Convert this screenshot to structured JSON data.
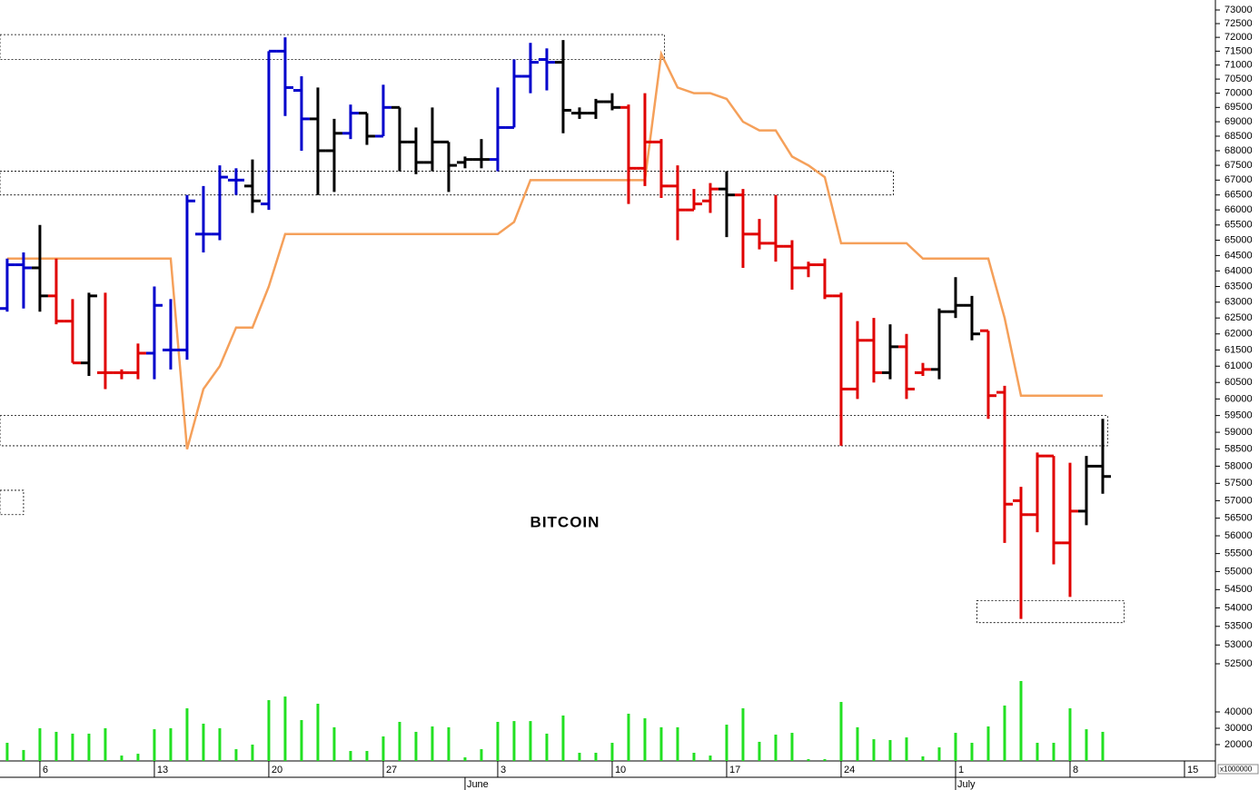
{
  "chart_data": {
    "type": "ohlc",
    "title": "BITCOIN",
    "x": [
      0,
      1,
      2,
      3,
      4,
      5,
      6,
      7,
      8,
      9,
      10,
      11,
      12,
      13,
      14,
      15,
      16,
      17,
      18,
      19,
      20,
      21,
      22,
      23,
      24,
      25,
      26,
      27,
      28,
      29,
      30,
      31,
      32,
      33,
      34,
      35,
      36,
      37,
      38,
      39,
      40,
      41,
      42,
      43,
      44,
      45,
      46,
      47,
      48,
      49,
      50,
      51,
      52,
      53,
      54,
      55,
      56,
      57,
      58,
      59,
      60,
      61,
      62,
      63,
      64,
      65,
      66,
      67
    ],
    "open": [
      62800,
      64200,
      64100,
      63200,
      62400,
      61100,
      60800,
      60800,
      60800,
      61400,
      61500,
      61500,
      65200,
      65200,
      67000,
      66800,
      66200,
      71500,
      70100,
      69100,
      68000,
      68600,
      69300,
      68500,
      69500,
      68300,
      67600,
      68300,
      67600,
      67700,
      67700,
      68800,
      70600,
      71200,
      71100,
      69300,
      69300,
      69700,
      69500,
      67400,
      68300,
      66800,
      66000,
      66300,
      66700,
      66500,
      65200,
      64900,
      64800,
      64100,
      64200,
      63200,
      60300,
      61800,
      60800,
      61600,
      60800,
      60900,
      62700,
      62900,
      62100,
      60200,
      57000,
      56600,
      58300,
      55800,
      56700,
      58000
    ],
    "high": [
      64400,
      64600,
      65500,
      64400,
      63100,
      63300,
      63300,
      60900,
      61700,
      63500,
      63100,
      66500,
      66800,
      67500,
      67400,
      67700,
      71500,
      72000,
      70600,
      70200,
      69100,
      69600,
      69300,
      70300,
      69500,
      68800,
      69500,
      68300,
      67800,
      68400,
      70200,
      71200,
      71800,
      71600,
      71900,
      69500,
      69800,
      70000,
      69600,
      70000,
      68400,
      67500,
      66700,
      66900,
      67300,
      66700,
      65700,
      66500,
      65000,
      64300,
      64400,
      63300,
      62400,
      62500,
      62300,
      62000,
      61100,
      62800,
      63800,
      63200,
      62100,
      60400,
      57400,
      58400,
      58300,
      58100,
      58300,
      59400
    ],
    "low": [
      62700,
      62800,
      62700,
      62300,
      61100,
      60700,
      60300,
      60600,
      60600,
      60600,
      60900,
      61200,
      64600,
      65000,
      66500,
      65900,
      66000,
      69200,
      68000,
      66500,
      66600,
      68400,
      68200,
      68500,
      67300,
      67200,
      67300,
      66600,
      67400,
      67400,
      67300,
      68800,
      70000,
      70100,
      68600,
      69100,
      69100,
      69400,
      66200,
      66800,
      66400,
      65000,
      66000,
      65900,
      65100,
      64100,
      64700,
      64300,
      63400,
      63800,
      63100,
      58600,
      60000,
      60500,
      60600,
      60000,
      60700,
      60600,
      62500,
      61800,
      59400,
      55800,
      53700,
      56100,
      55200,
      54300,
      56300,
      57200
    ],
    "close": [
      64200,
      64100,
      63200,
      62400,
      61100,
      63200,
      60800,
      60800,
      61400,
      62900,
      61500,
      66300,
      65200,
      67100,
      67000,
      66300,
      71500,
      70200,
      69100,
      68000,
      68600,
      69300,
      68500,
      69500,
      68300,
      67600,
      68300,
      67500,
      67700,
      67700,
      68800,
      70600,
      71100,
      71100,
      69400,
      69300,
      69700,
      69500,
      67400,
      68300,
      66800,
      66000,
      66200,
      66700,
      66500,
      65200,
      64900,
      64800,
      64100,
      64200,
      63200,
      60300,
      61800,
      60800,
      61600,
      60300,
      60900,
      62700,
      62900,
      62000,
      60100,
      56900,
      56600,
      58300,
      55800,
      56700,
      58000,
      57700
    ],
    "bar_colors": [
      "#0000cc",
      "#0000cc",
      "#000000",
      "#e00000",
      "#e00000",
      "#000000",
      "#e00000",
      "#e00000",
      "#e00000",
      "#0000cc",
      "#0000cc",
      "#0000cc",
      "#0000cc",
      "#0000cc",
      "#0000cc",
      "#000000",
      "#0000cc",
      "#0000cc",
      "#0000cc",
      "#000000",
      "#000000",
      "#0000cc",
      "#000000",
      "#0000cc",
      "#000000",
      "#000000",
      "#000000",
      "#000000",
      "#000000",
      "#000000",
      "#0000cc",
      "#0000cc",
      "#0000cc",
      "#0000cc",
      "#000000",
      "#000000",
      "#000000",
      "#000000",
      "#e00000",
      "#e00000",
      "#e00000",
      "#e00000",
      "#e00000",
      "#e00000",
      "#000000",
      "#e00000",
      "#e00000",
      "#e00000",
      "#e00000",
      "#e00000",
      "#e00000",
      "#e00000",
      "#e00000",
      "#e00000",
      "#000000",
      "#e00000",
      "#e00000",
      "#000000",
      "#000000",
      "#000000",
      "#e00000",
      "#e00000",
      "#e00000",
      "#e00000",
      "#e00000",
      "#e00000",
      "#000000",
      "#000000"
    ],
    "stop_line": {
      "color": "#f5a05a",
      "values": [
        64400,
        64400,
        64400,
        64400,
        64400,
        64400,
        64400,
        64400,
        64400,
        64400,
        64400,
        58500,
        60300,
        61000,
        62200,
        62200,
        63500,
        65200,
        65200,
        65200,
        65200,
        65200,
        65200,
        65200,
        65200,
        65200,
        65200,
        65200,
        65200,
        65200,
        65200,
        65600,
        67000,
        67000,
        67000,
        67000,
        67000,
        67000,
        67000,
        67000,
        71400,
        70200,
        70000,
        70000,
        69800,
        69000,
        68700,
        68700,
        67800,
        67500,
        67100,
        64900,
        64900,
        64900,
        64900,
        64900,
        64400,
        64400,
        64400,
        64400,
        64400,
        62500,
        60100,
        60100,
        60100,
        60100,
        60100,
        60100
      ]
    },
    "volume": {
      "color": "#22e022",
      "axis": "y2",
      "values": [
        21100,
        16700,
        30000,
        27800,
        26700,
        26700,
        30000,
        13300,
        14400,
        29400,
        30000,
        42200,
        32800,
        30000,
        17200,
        20000,
        47200,
        49400,
        35000,
        45000,
        30600,
        16100,
        16100,
        25000,
        33900,
        27800,
        31100,
        30600,
        12200,
        17200,
        33900,
        34400,
        34400,
        26700,
        37800,
        15000,
        15000,
        21100,
        38900,
        36100,
        30600,
        30600,
        15000,
        13300,
        32200,
        42200,
        21700,
        26100,
        27200,
        11100,
        11100,
        46100,
        30600,
        23300,
        22800,
        24400,
        12800,
        18300,
        27200,
        21100,
        31100,
        43900,
        58900,
        21100,
        21100,
        42200,
        29400,
        27800
      ]
    },
    "zones": [
      {
        "x": [
          -0.44,
          40.2
        ],
        "y": [
          71200,
          72100
        ]
      },
      {
        "x": [
          -0.44,
          54.2
        ],
        "y": [
          66500,
          67300
        ]
      },
      {
        "x": [
          -0.44,
          67.3
        ],
        "y": [
          58600,
          59500
        ]
      },
      {
        "x": [
          -0.44,
          1
        ],
        "y": [
          56600,
          57300
        ]
      },
      {
        "x": [
          59.3,
          68.3
        ],
        "y": [
          53600,
          54200
        ]
      }
    ],
    "log_y": true,
    "ylim": [
      52500,
      73000
    ],
    "yticks": [
      52500,
      53000,
      53500,
      54000,
      54500,
      55000,
      55500,
      56000,
      56500,
      57000,
      57500,
      58000,
      58500,
      59000,
      59500,
      60000,
      60500,
      61000,
      61500,
      62000,
      62500,
      63000,
      63500,
      64000,
      64500,
      65000,
      65500,
      66000,
      66500,
      67000,
      67500,
      68000,
      68500,
      69000,
      69500,
      70000,
      70500,
      71000,
      71500,
      72000,
      72500,
      73000
    ],
    "y2lim": [
      10000,
      60000
    ],
    "y2ticks": [
      20000,
      30000,
      40000
    ],
    "y2_label": "x1000000",
    "xlim": [
      -0.44,
      73.89
    ],
    "xticks": [
      {
        "value": 2,
        "label": "6"
      },
      {
        "value": 9,
        "label": "13"
      },
      {
        "value": 16,
        "label": "20"
      },
      {
        "value": 23,
        "label": "27"
      },
      {
        "value": 30,
        "label": "3"
      },
      {
        "value": 37,
        "label": "10"
      },
      {
        "value": 44,
        "label": "17"
      },
      {
        "value": 51,
        "label": "24"
      },
      {
        "value": 58,
        "label": "1"
      },
      {
        "value": 65,
        "label": "8"
      },
      {
        "value": 72,
        "label": "15"
      }
    ],
    "month_ticks": [
      {
        "value": 28,
        "label": "June"
      },
      {
        "value": 58,
        "label": "July"
      }
    ]
  }
}
